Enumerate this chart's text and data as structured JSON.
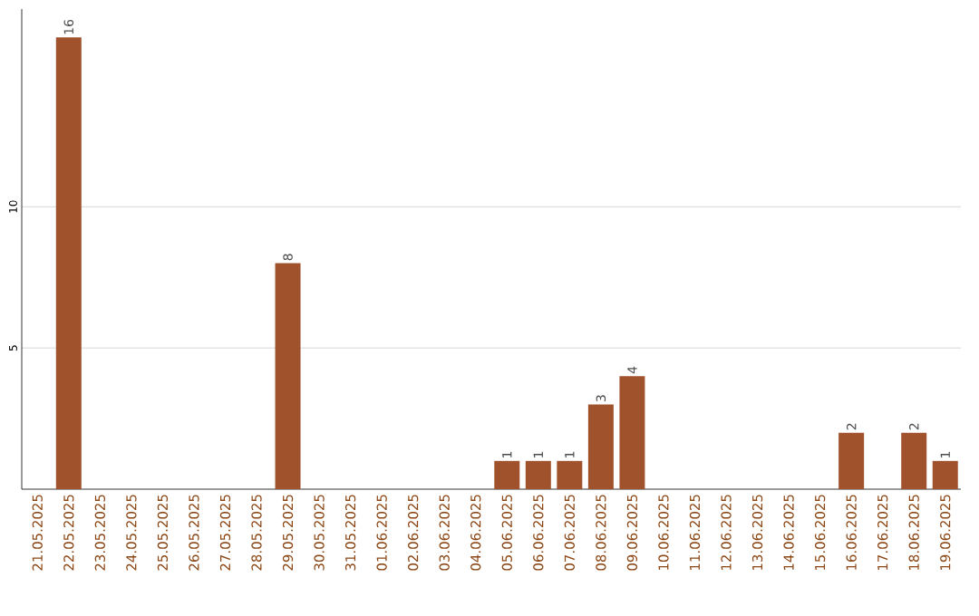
{
  "chart_data": {
    "type": "bar",
    "categories": [
      "21.05.2025",
      "22.05.2025",
      "23.05.2025",
      "24.05.2025",
      "25.05.2025",
      "26.05.2025",
      "27.05.2025",
      "28.05.2025",
      "29.05.2025",
      "30.05.2025",
      "31.05.2025",
      "01.06.2025",
      "02.06.2025",
      "03.06.2025",
      "04.06.2025",
      "05.06.2025",
      "06.06.2025",
      "07.06.2025",
      "08.06.2025",
      "09.06.2025",
      "10.06.2025",
      "11.06.2025",
      "12.06.2025",
      "13.06.2025",
      "14.06.2025",
      "15.06.2025",
      "16.06.2025",
      "17.06.2025",
      "18.06.2025",
      "19.06.2025"
    ],
    "values": [
      0,
      16,
      0,
      0,
      0,
      0,
      0,
      0,
      8,
      0,
      0,
      0,
      0,
      0,
      0,
      1,
      1,
      1,
      3,
      4,
      0,
      0,
      0,
      0,
      0,
      0,
      2,
      0,
      2,
      1
    ],
    "value_labels": [
      null,
      "16",
      null,
      null,
      null,
      null,
      null,
      null,
      "8",
      null,
      null,
      null,
      null,
      null,
      null,
      "1",
      "1",
      "1",
      "3",
      "4",
      null,
      null,
      null,
      null,
      null,
      null,
      "2",
      null,
      "2",
      "1"
    ],
    "color": "#a0522d",
    "ylim": [
      0,
      17
    ],
    "yticks": [
      5,
      10
    ],
    "grid": "y"
  }
}
